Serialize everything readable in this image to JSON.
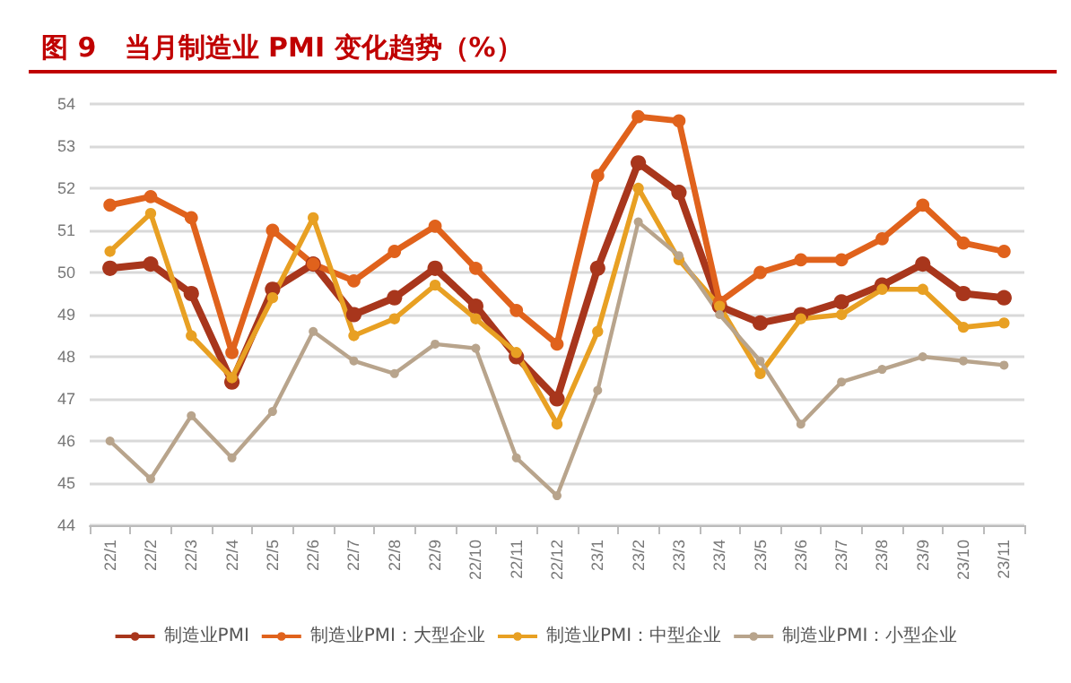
{
  "chart_data": {
    "type": "line",
    "title": "图 9   当月制造业 PMI 变化趋势（%）",
    "categories": [
      "22/1",
      "22/2",
      "22/3",
      "22/4",
      "22/5",
      "22/6",
      "22/7",
      "22/8",
      "22/9",
      "22/10",
      "22/11",
      "22/12",
      "23/1",
      "23/2",
      "23/3",
      "23/4",
      "23/5",
      "23/6",
      "23/7",
      "23/8",
      "23/9",
      "23/10",
      "23/11"
    ],
    "series": [
      {
        "name": "制造业PMI",
        "color": "#a8361c",
        "values": [
          50.1,
          50.2,
          49.5,
          47.4,
          49.6,
          50.2,
          49.0,
          49.4,
          50.1,
          49.2,
          48.0,
          47.0,
          50.1,
          52.6,
          51.9,
          49.2,
          48.8,
          49.0,
          49.3,
          49.7,
          50.2,
          49.5,
          49.4
        ]
      },
      {
        "name": "制造业PMI：大型企业",
        "color": "#e0621c",
        "values": [
          51.6,
          51.8,
          51.3,
          48.1,
          51.0,
          50.2,
          49.8,
          50.5,
          51.1,
          50.1,
          49.1,
          48.3,
          52.3,
          53.7,
          53.6,
          49.3,
          50.0,
          50.3,
          50.3,
          50.8,
          51.6,
          50.7,
          50.5
        ]
      },
      {
        "name": "制造业PMI：中型企业",
        "color": "#e8a023",
        "values": [
          50.5,
          51.4,
          48.5,
          47.5,
          49.4,
          51.3,
          48.5,
          48.9,
          49.7,
          48.9,
          48.1,
          46.4,
          48.6,
          52.0,
          50.3,
          49.2,
          47.6,
          48.9,
          49.0,
          49.6,
          49.6,
          48.7,
          48.8
        ]
      },
      {
        "name": "制造业PMI：小型企业",
        "color": "#b8a48c",
        "values": [
          46.0,
          45.1,
          46.6,
          45.6,
          46.7,
          48.6,
          47.9,
          47.6,
          48.3,
          48.2,
          45.6,
          44.7,
          47.2,
          51.2,
          50.4,
          49.0,
          47.9,
          46.4,
          47.4,
          47.7,
          48.0,
          47.9,
          47.8
        ]
      }
    ],
    "ylim": [
      44,
      54
    ],
    "yticks": [
      44,
      45,
      46,
      47,
      48,
      49,
      50,
      51,
      52,
      53,
      54
    ],
    "grid": "y",
    "legend": "bottom",
    "marker": "circle",
    "line_style": "solid"
  }
}
